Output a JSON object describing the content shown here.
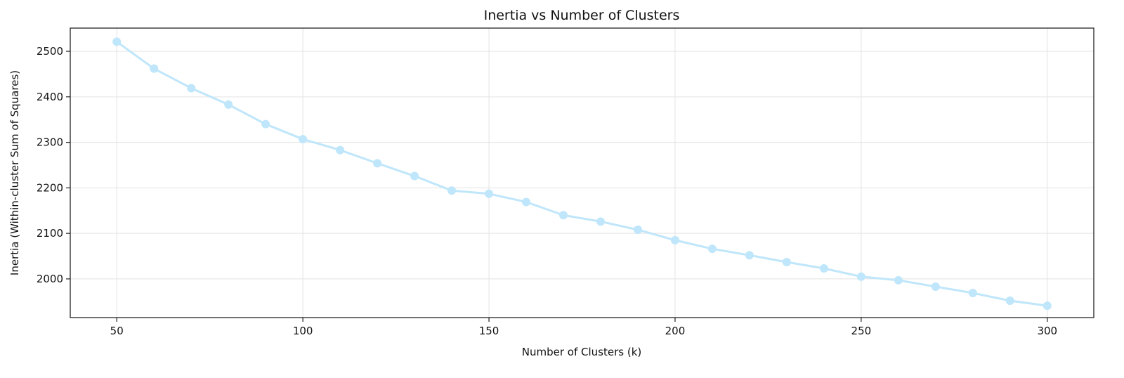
{
  "chart_data": {
    "type": "line",
    "title": "Inertia vs Number of Clusters",
    "xlabel": "Number of Clusters (k)",
    "ylabel": "Inertia (Within-cluster Sum of Squares)",
    "xlim": [
      37.5,
      312.5
    ],
    "ylim": [
      1915,
      2551
    ],
    "xticks": [
      50,
      100,
      150,
      200,
      250,
      300
    ],
    "yticks": [
      2000,
      2100,
      2200,
      2300,
      2400,
      2500
    ],
    "grid": true,
    "color": "#bfe6fa",
    "series": [
      {
        "name": "Inertia",
        "x": [
          50,
          60,
          70,
          80,
          90,
          100,
          110,
          120,
          130,
          140,
          150,
          160,
          170,
          180,
          190,
          200,
          210,
          220,
          230,
          240,
          250,
          260,
          270,
          280,
          290,
          300
        ],
        "y": [
          2521,
          2462,
          2419,
          2383,
          2340,
          2307,
          2283,
          2254,
          2226,
          2194,
          2187,
          2169,
          2140,
          2126,
          2108,
          2085,
          2066,
          2052,
          2037,
          2023,
          2005,
          1997,
          1983,
          1969,
          1952,
          1941
        ]
      }
    ]
  }
}
